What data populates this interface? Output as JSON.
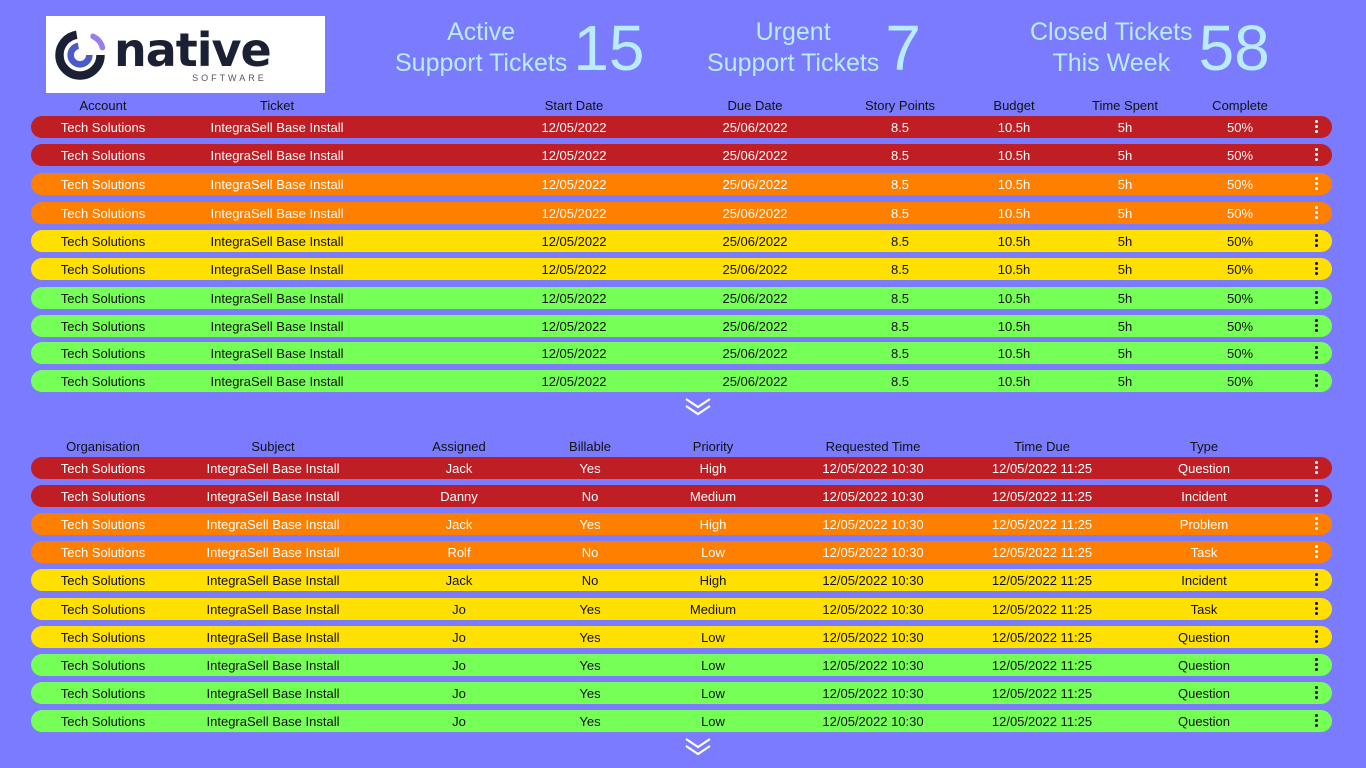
{
  "logo": {
    "brand": "native",
    "sub": "SOFTWARE"
  },
  "stats": {
    "active": {
      "label1": "Active",
      "label2": "Support Tickets",
      "value": "15"
    },
    "urgent": {
      "label1": "Urgent",
      "label2": "Support Tickets",
      "value": "7"
    },
    "closed": {
      "label1": "Closed Tickets",
      "label2": "This Week",
      "value": "58"
    }
  },
  "colors": {
    "red": "#be1e24",
    "orange": "#ff7f00",
    "yellow": "#ffe000",
    "green": "#76ff56",
    "background": "#7b7bff",
    "stat_text": "#b9ecff"
  },
  "projects": {
    "headers": [
      "Account",
      "Ticket",
      "Start Date",
      "Due Date",
      "Story Points",
      "Budget",
      "Time Spent",
      "Complete"
    ],
    "rows": [
      {
        "status": "red",
        "cells": [
          "Tech Solutions",
          "IntegraSell Base Install",
          "12/05/2022",
          "25/06/2022",
          "8.5",
          "10.5h",
          "5h",
          "50%"
        ]
      },
      {
        "status": "red",
        "cells": [
          "Tech Solutions",
          "IntegraSell Base Install",
          "12/05/2022",
          "25/06/2022",
          "8.5",
          "10.5h",
          "5h",
          "50%"
        ]
      },
      {
        "status": "orange",
        "cells": [
          "Tech Solutions",
          "IntegraSell Base Install",
          "12/05/2022",
          "25/06/2022",
          "8.5",
          "10.5h",
          "5h",
          "50%"
        ]
      },
      {
        "status": "orange",
        "cells": [
          "Tech Solutions",
          "IntegraSell Base Install",
          "12/05/2022",
          "25/06/2022",
          "8.5",
          "10.5h",
          "5h",
          "50%"
        ]
      },
      {
        "status": "yellow",
        "cells": [
          "Tech Solutions",
          "IntegraSell Base Install",
          "12/05/2022",
          "25/06/2022",
          "8.5",
          "10.5h",
          "5h",
          "50%"
        ]
      },
      {
        "status": "yellow",
        "cells": [
          "Tech Solutions",
          "IntegraSell Base Install",
          "12/05/2022",
          "25/06/2022",
          "8.5",
          "10.5h",
          "5h",
          "50%"
        ]
      },
      {
        "status": "green",
        "cells": [
          "Tech Solutions",
          "IntegraSell Base Install",
          "12/05/2022",
          "25/06/2022",
          "8.5",
          "10.5h",
          "5h",
          "50%"
        ]
      },
      {
        "status": "green",
        "cells": [
          "Tech Solutions",
          "IntegraSell Base Install",
          "12/05/2022",
          "25/06/2022",
          "8.5",
          "10.5h",
          "5h",
          "50%"
        ]
      },
      {
        "status": "green",
        "cells": [
          "Tech Solutions",
          "IntegraSell Base Install",
          "12/05/2022",
          "25/06/2022",
          "8.5",
          "10.5h",
          "5h",
          "50%"
        ]
      },
      {
        "status": "green",
        "cells": [
          "Tech Solutions",
          "IntegraSell Base Install",
          "12/05/2022",
          "25/06/2022",
          "8.5",
          "10.5h",
          "5h",
          "50%"
        ]
      }
    ]
  },
  "support": {
    "headers": [
      "Organisation",
      "Subject",
      "Assigned",
      "Billable",
      "Priority",
      "Requested Time",
      "Time Due",
      "Type"
    ],
    "rows": [
      {
        "status": "red",
        "cells": [
          "Tech Solutions",
          "IntegraSell Base Install",
          "Jack",
          "Yes",
          "High",
          "12/05/2022 10:30",
          "12/05/2022 11:25",
          "Question"
        ]
      },
      {
        "status": "red",
        "cells": [
          "Tech Solutions",
          "IntegraSell Base Install",
          "Danny",
          "No",
          "Medium",
          "12/05/2022 10:30",
          "12/05/2022 11:25",
          "Incident"
        ]
      },
      {
        "status": "orange",
        "cells": [
          "Tech Solutions",
          "IntegraSell Base Install",
          "Jack",
          "Yes",
          "High",
          "12/05/2022 10:30",
          "12/05/2022 11:25",
          "Problem"
        ]
      },
      {
        "status": "orange",
        "cells": [
          "Tech Solutions",
          "IntegraSell Base Install",
          "Rolf",
          "No",
          "Low",
          "12/05/2022 10:30",
          "12/05/2022 11:25",
          "Task"
        ]
      },
      {
        "status": "yellow",
        "cells": [
          "Tech Solutions",
          "IntegraSell Base Install",
          "Jack",
          "No",
          "High",
          "12/05/2022 10:30",
          "12/05/2022 11:25",
          "Incident"
        ]
      },
      {
        "status": "yellow",
        "cells": [
          "Tech Solutions",
          "IntegraSell Base Install",
          "Jo",
          "Yes",
          "Medium",
          "12/05/2022 10:30",
          "12/05/2022 11:25",
          "Task"
        ]
      },
      {
        "status": "yellow",
        "cells": [
          "Tech Solutions",
          "IntegraSell Base Install",
          "Jo",
          "Yes",
          "Low",
          "12/05/2022 10:30",
          "12/05/2022 11:25",
          "Question"
        ]
      },
      {
        "status": "green",
        "cells": [
          "Tech Solutions",
          "IntegraSell Base Install",
          "Jo",
          "Yes",
          "Low",
          "12/05/2022 10:30",
          "12/05/2022 11:25",
          "Question"
        ]
      },
      {
        "status": "green",
        "cells": [
          "Tech Solutions",
          "IntegraSell Base Install",
          "Jo",
          "Yes",
          "Low",
          "12/05/2022 10:30",
          "12/05/2022 11:25",
          "Question"
        ]
      },
      {
        "status": "green",
        "cells": [
          "Tech Solutions",
          "IntegraSell Base Install",
          "Jo",
          "Yes",
          "Low",
          "12/05/2022 10:30",
          "12/05/2022 11:25",
          "Question"
        ]
      }
    ]
  }
}
